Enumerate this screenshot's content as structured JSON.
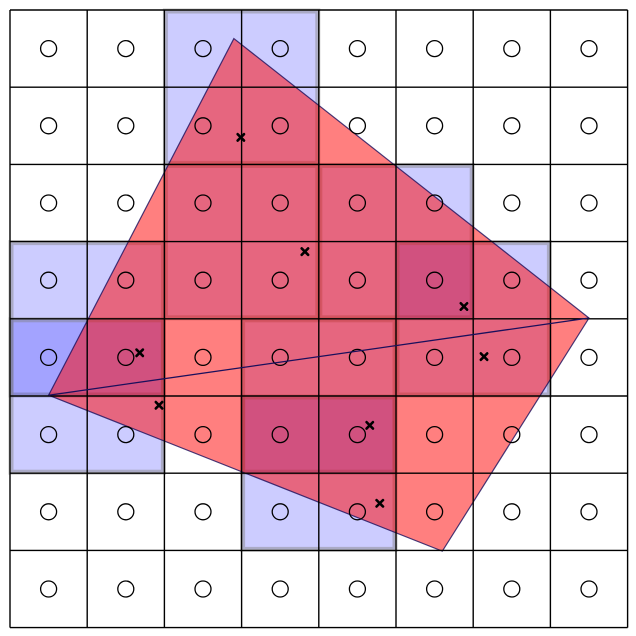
{
  "grid": {
    "rows": 8,
    "cols": 8
  },
  "colors": {
    "grid_line": "#000000",
    "circle_stroke": "#000000",
    "blue_fill": "#0000ff",
    "blue_border": "#808080",
    "red_fill": "#ff0000",
    "polygon_edge": "#1a0f5c",
    "marker": "#000000"
  },
  "blue_rectangles_cells": [
    {
      "c0": 2,
      "r0": 0,
      "c1": 4,
      "r1": 2
    },
    {
      "c0": 2,
      "r0": 2,
      "c1": 4,
      "r1": 4
    },
    {
      "c0": 4,
      "r0": 2,
      "c1": 6,
      "r1": 4
    },
    {
      "c0": 5,
      "r0": 3,
      "c1": 7,
      "r1": 5
    },
    {
      "c0": 0,
      "r0": 3,
      "c1": 2,
      "r1": 5
    },
    {
      "c0": 0,
      "r0": 4,
      "c1": 2,
      "r1": 6
    },
    {
      "c0": 3,
      "r0": 4,
      "c1": 5,
      "r1": 6
    },
    {
      "c0": 3,
      "r0": 5,
      "c1": 5,
      "r1": 7
    }
  ],
  "red_polygon_vertices_cells": [
    {
      "c": 2.9,
      "r": 0.37
    },
    {
      "c": 7.5,
      "r": 3.99
    },
    {
      "c": 5.6,
      "r": 7.01
    },
    {
      "c": 0.5,
      "r": 4.99
    }
  ],
  "diagonal_line_cells": [
    {
      "c": 0.5,
      "r": 4.99
    },
    {
      "c": 7.5,
      "r": 3.99
    }
  ],
  "markers_cells": [
    {
      "c": 2.99,
      "r": 1.65
    },
    {
      "c": 3.82,
      "r": 3.13
    },
    {
      "c": 5.88,
      "r": 3.84
    },
    {
      "c": 6.14,
      "r": 4.49
    },
    {
      "c": 1.68,
      "r": 4.44
    },
    {
      "c": 1.93,
      "r": 5.12
    },
    {
      "c": 4.66,
      "r": 5.38
    },
    {
      "c": 4.79,
      "r": 6.39
    }
  ]
}
